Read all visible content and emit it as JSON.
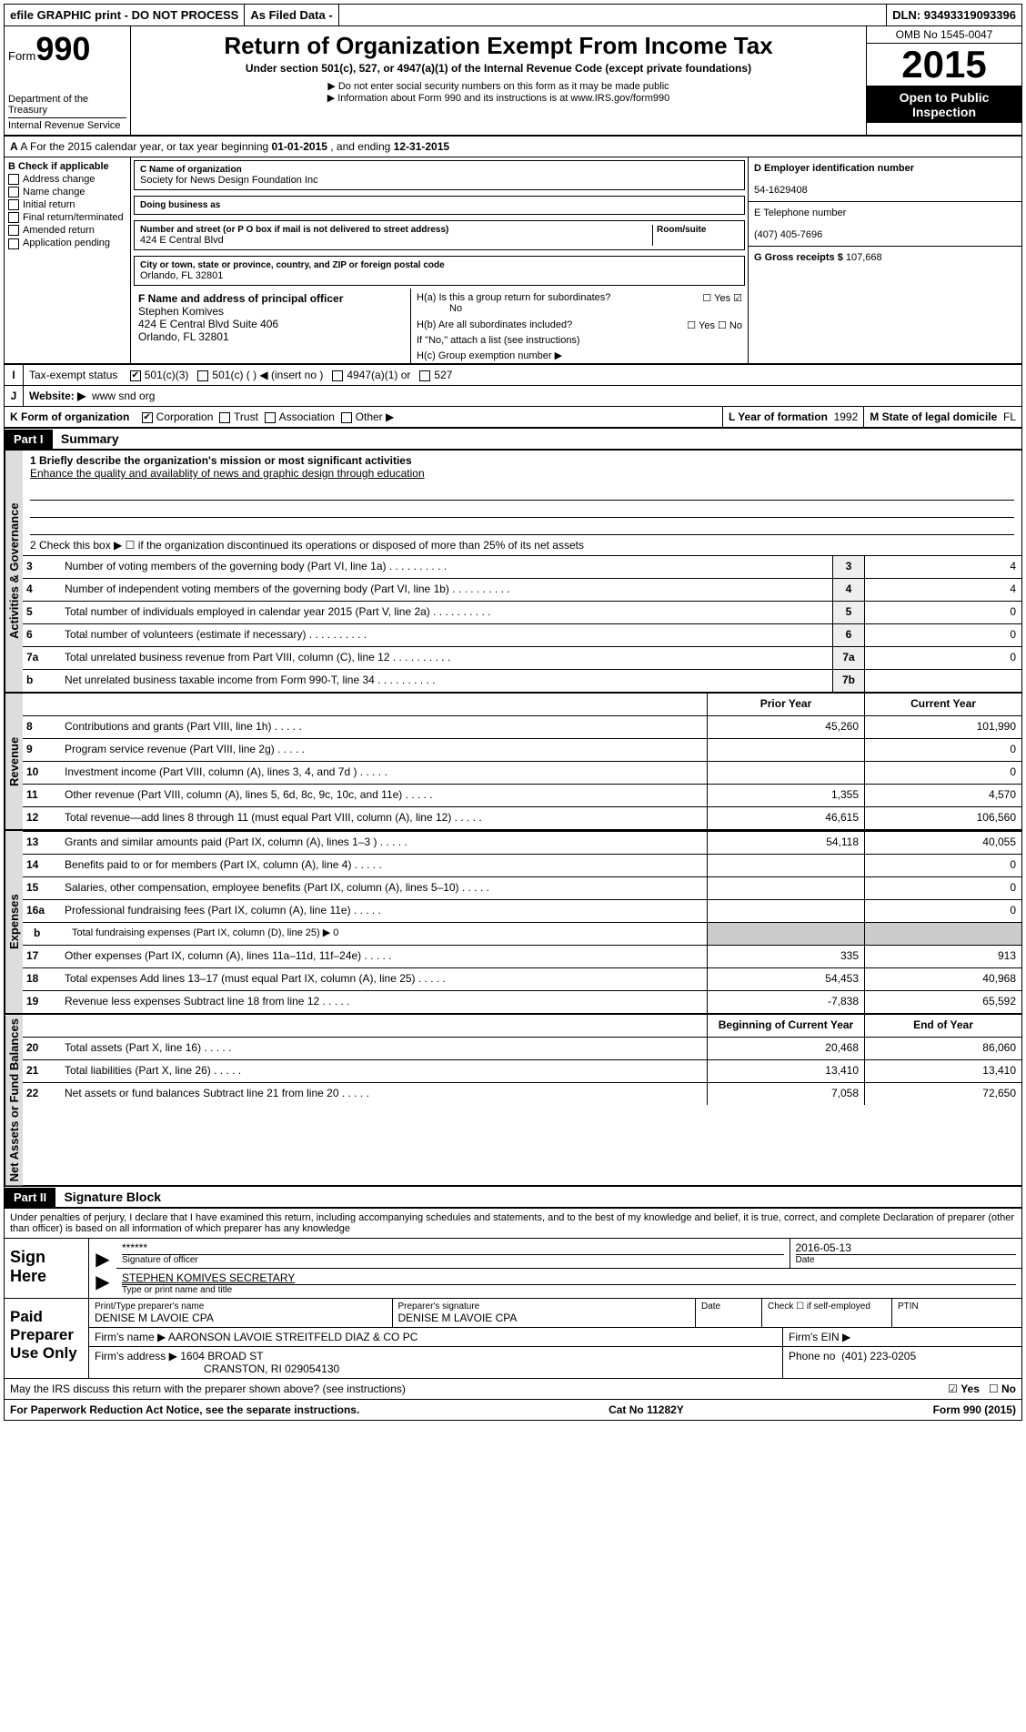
{
  "top": {
    "efile": "efile GRAPHIC print - DO NOT PROCESS",
    "asfiled": "As Filed Data -",
    "dln_label": "DLN:",
    "dln": "93493319093396"
  },
  "header": {
    "form_word": "Form",
    "form_num": "990",
    "dept1": "Department of the Treasury",
    "dept2": "Internal Revenue Service",
    "title": "Return of Organization Exempt From Income Tax",
    "sub1": "Under section 501(c), 527, or 4947(a)(1) of the Internal Revenue Code (except private foundations)",
    "sub2": "▶ Do not enter social security numbers on this form as it may be made public",
    "sub3": "▶ Information about Form 990 and its instructions is at www.IRS.gov/form990",
    "omb": "OMB No 1545-0047",
    "year": "2015",
    "open1": "Open to Public",
    "open2": "Inspection"
  },
  "rowA": {
    "text_a": "A  For the 2015 calendar year, or tax year beginning ",
    "begin": "01-01-2015",
    "mid": " , and ending ",
    "end": "12-31-2015"
  },
  "B": {
    "title": "B  Check if applicable",
    "items": [
      "Address change",
      "Name change",
      "Initial return",
      "Final return/terminated",
      "Amended return",
      "Application pending"
    ]
  },
  "C": {
    "label": "C  Name of organization",
    "name": "Society for News Design Foundation Inc",
    "dba_label": "Doing business as",
    "dba": "",
    "street_label": "Number and street (or P O  box if mail is not delivered to street address)",
    "room_label": "Room/suite",
    "street": "424 E Central Blvd",
    "city_label": "City or town, state or province, country, and ZIP or foreign postal code",
    "city": "Orlando, FL  32801"
  },
  "D": {
    "label": "D Employer identification number",
    "val": "54-1629408"
  },
  "E": {
    "label": "E Telephone number",
    "val": "(407) 405-7696"
  },
  "G": {
    "label": "G Gross receipts $",
    "val": "107,668"
  },
  "F": {
    "label": "F  Name and address of principal officer",
    "l1": "Stephen Komives",
    "l2": "424 E Central Blvd Suite 406",
    "l3": "Orlando, FL  32801"
  },
  "H": {
    "a": "H(a)  Is this a group return for subordinates?",
    "a_ans": "No",
    "b": "H(b)  Are all subordinates included?",
    "b_note": "If \"No,\" attach a list  (see instructions)",
    "c": "H(c)  Group exemption number ▶"
  },
  "I": {
    "label": "Tax-exempt status",
    "opts": [
      "501(c)(3)",
      "501(c) (  ) ◀ (insert no )",
      "4947(a)(1) or",
      "527"
    ],
    "checked": 0
  },
  "J": {
    "label": "Website: ▶",
    "val": "www snd org"
  },
  "K": {
    "label": "K Form of organization",
    "opts": [
      "Corporation",
      "Trust",
      "Association",
      "Other ▶"
    ],
    "checked": 0
  },
  "L": {
    "label": "L Year of formation",
    "val": "1992"
  },
  "M": {
    "label": "M State of legal domicile",
    "val": "FL"
  },
  "partI": {
    "tag": "Part I",
    "title": "Summary"
  },
  "summary": {
    "q1_label": "1 Briefly describe the organization's mission or most significant activities",
    "q1_val": "Enhance the quality and availablity of news and graphic design through education",
    "q2": "2  Check this box ▶ ☐ if the organization discontinued its operations or disposed of more than 25% of its net assets"
  },
  "gov_lines": [
    {
      "n": "3",
      "d": "Number of voting members of the governing body (Part VI, line 1a)",
      "k": "3",
      "v": "4"
    },
    {
      "n": "4",
      "d": "Number of independent voting members of the governing body (Part VI, line 1b)",
      "k": "4",
      "v": "4"
    },
    {
      "n": "5",
      "d": "Total number of individuals employed in calendar year 2015 (Part V, line 2a)",
      "k": "5",
      "v": "0"
    },
    {
      "n": "6",
      "d": "Total number of volunteers (estimate if necessary)",
      "k": "6",
      "v": "0"
    },
    {
      "n": "7a",
      "d": "Total unrelated business revenue from Part VIII, column (C), line 12",
      "k": "7a",
      "v": "0"
    },
    {
      "n": "b",
      "d": "Net unrelated business taxable income from Form 990-T, line 34",
      "k": "7b",
      "v": ""
    }
  ],
  "col_hdrs": {
    "prior": "Prior Year",
    "current": "Current Year"
  },
  "rev_lines": [
    {
      "n": "8",
      "d": "Contributions and grants (Part VIII, line 1h)",
      "p": "45,260",
      "c": "101,990"
    },
    {
      "n": "9",
      "d": "Program service revenue (Part VIII, line 2g)",
      "p": "",
      "c": "0"
    },
    {
      "n": "10",
      "d": "Investment income (Part VIII, column (A), lines 3, 4, and 7d )",
      "p": "",
      "c": "0"
    },
    {
      "n": "11",
      "d": "Other revenue (Part VIII, column (A), lines 5, 6d, 8c, 9c, 10c, and 11e)",
      "p": "1,355",
      "c": "4,570"
    },
    {
      "n": "12",
      "d": "Total revenue—add lines 8 through 11 (must equal Part VIII, column (A), line 12)",
      "p": "46,615",
      "c": "106,560"
    }
  ],
  "exp_lines": [
    {
      "n": "13",
      "d": "Grants and similar amounts paid (Part IX, column (A), lines 1–3 )",
      "p": "54,118",
      "c": "40,055"
    },
    {
      "n": "14",
      "d": "Benefits paid to or for members (Part IX, column (A), line 4)",
      "p": "",
      "c": "0"
    },
    {
      "n": "15",
      "d": "Salaries, other compensation, employee benefits (Part IX, column (A), lines 5–10)",
      "p": "",
      "c": "0"
    },
    {
      "n": "16a",
      "d": "Professional fundraising fees (Part IX, column (A), line 11e)",
      "p": "",
      "c": "0"
    },
    {
      "n": "b",
      "d": "Total fundraising expenses (Part IX, column (D), line 25) ▶ 0",
      "p": null,
      "c": null
    },
    {
      "n": "17",
      "d": "Other expenses (Part IX, column (A), lines 11a–11d, 11f–24e)",
      "p": "335",
      "c": "913"
    },
    {
      "n": "18",
      "d": "Total expenses  Add lines 13–17 (must equal Part IX, column (A), line 25)",
      "p": "54,453",
      "c": "40,968"
    },
    {
      "n": "19",
      "d": "Revenue less expenses  Subtract line 18 from line 12",
      "p": "-7,838",
      "c": "65,592"
    }
  ],
  "na_hdrs": {
    "begin": "Beginning of Current Year",
    "end": "End of Year"
  },
  "na_lines": [
    {
      "n": "20",
      "d": "Total assets (Part X, line 16)",
      "p": "20,468",
      "c": "86,060"
    },
    {
      "n": "21",
      "d": "Total liabilities (Part X, line 26)",
      "p": "13,410",
      "c": "13,410"
    },
    {
      "n": "22",
      "d": "Net assets or fund balances  Subtract line 21 from line 20",
      "p": "7,058",
      "c": "72,650"
    }
  ],
  "partII": {
    "tag": "Part II",
    "title": "Signature Block"
  },
  "penalty": "Under penalties of perjury, I declare that I have examined this return, including accompanying schedules and statements, and to the best of my knowledge and belief, it is true, correct, and complete  Declaration of preparer (other than officer) is based on all information of which preparer has any knowledge",
  "sign": {
    "here": "Sign Here",
    "stars": "******",
    "sig_label": "Signature of officer",
    "date": "2016-05-13",
    "date_label": "Date",
    "name": "STEPHEN KOMIVES SECRETARY",
    "name_label": "Type or print name and title"
  },
  "paid": {
    "here": "Paid Preparer Use Only",
    "prep_name_label": "Print/Type preparer's name",
    "prep_name": "DENISE M LAVOIE CPA",
    "prep_sig_label": "Preparer's signature",
    "prep_sig": "DENISE M LAVOIE CPA",
    "date_label": "Date",
    "se_label": "Check ☐ if self-employed",
    "ptin_label": "PTIN",
    "firm_name_label": "Firm's name    ▶",
    "firm_name": "AARONSON LAVOIE STREITFELD DIAZ & CO PC",
    "firm_ein_label": "Firm's EIN ▶",
    "firm_addr_label": "Firm's address ▶",
    "firm_addr1": "1604 BROAD ST",
    "firm_addr2": "CRANSTON, RI  029054130",
    "firm_phone_label": "Phone no",
    "firm_phone": "(401) 223-0205"
  },
  "discuss": "May the IRS discuss this return with the preparer shown above? (see instructions)",
  "discuss_yes": "Yes",
  "discuss_no": "No",
  "footer": {
    "l": "For Paperwork Reduction Act Notice, see the separate instructions.",
    "m": "Cat No 11282Y",
    "r": "Form 990 (2015)"
  },
  "vtabs": {
    "gov": "Activities & Governance",
    "rev": "Revenue",
    "exp": "Expenses",
    "na": "Net Assets or Fund Balances"
  }
}
